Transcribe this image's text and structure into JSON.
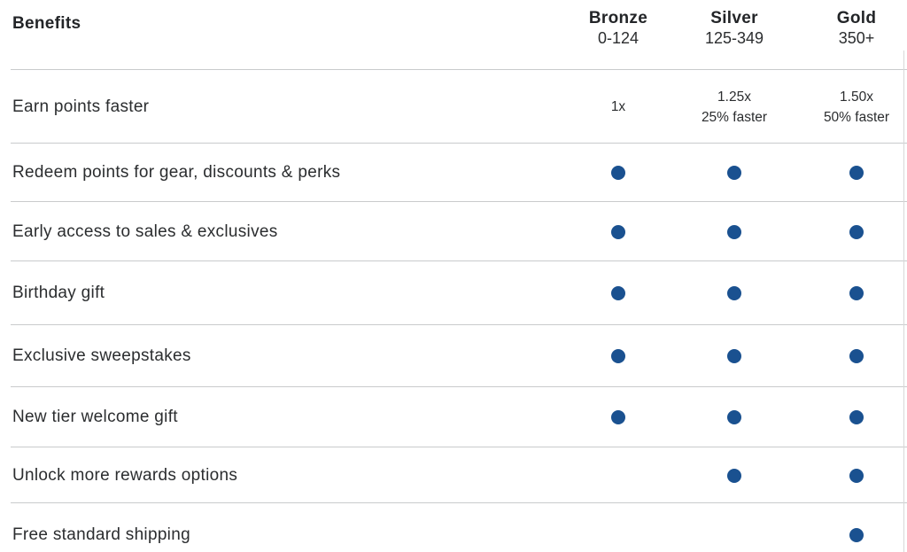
{
  "colors": {
    "dot": "#1a5190",
    "divider": "#c9cbcc"
  },
  "table": {
    "benefits_header": "Benefits",
    "tiers": [
      {
        "name": "Bronze",
        "range": "0-124"
      },
      {
        "name": "Silver",
        "range": "125-349"
      },
      {
        "name": "Gold",
        "range": "350+"
      }
    ],
    "rows": [
      {
        "label": "Earn points faster",
        "type": "text",
        "values": [
          {
            "line1": "1x",
            "line2": ""
          },
          {
            "line1": "1.25x",
            "line2": "25% faster"
          },
          {
            "line1": "1.50x",
            "line2": "50% faster"
          }
        ]
      },
      {
        "label": "Redeem points for gear, discounts & perks",
        "type": "dots",
        "dots": [
          true,
          true,
          true
        ]
      },
      {
        "label": "Early access to sales & exclusives",
        "type": "dots",
        "dots": [
          true,
          true,
          true
        ]
      },
      {
        "label": "Birthday gift",
        "type": "dots",
        "dots": [
          true,
          true,
          true
        ]
      },
      {
        "label": "Exclusive sweepstakes",
        "type": "dots",
        "dots": [
          true,
          true,
          true
        ]
      },
      {
        "label": "New tier welcome gift",
        "type": "dots",
        "dots": [
          true,
          true,
          true
        ]
      },
      {
        "label": "Unlock more rewards options",
        "type": "dots",
        "dots": [
          false,
          true,
          true
        ]
      },
      {
        "label": "Free standard shipping",
        "type": "dots",
        "dots": [
          false,
          false,
          true
        ]
      }
    ]
  }
}
